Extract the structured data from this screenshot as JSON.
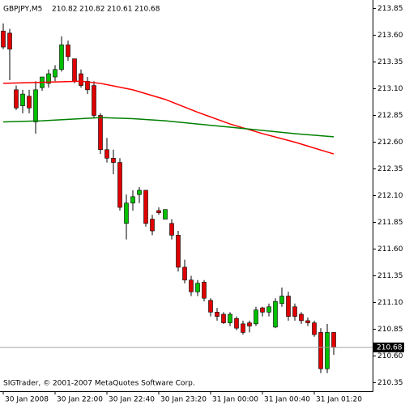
{
  "chart_data": {
    "type": "candlestick",
    "title": "GBPJPY,M5",
    "copyright": "SIGTrader, © 2001-2007 MetaQuotes Software Corp.",
    "bull_color": "#00c000",
    "bear_color": "#e00000",
    "x": [
      0,
      1,
      2,
      3,
      4,
      5,
      6,
      7,
      8,
      9,
      10,
      11,
      12,
      13,
      14,
      15,
      16,
      17,
      18,
      19,
      20,
      21,
      22,
      23,
      24,
      25,
      26,
      27,
      28,
      29,
      30,
      31,
      32,
      33,
      34,
      35,
      36,
      37,
      38,
      39,
      40,
      41,
      42,
      43,
      44,
      45,
      46,
      47,
      48,
      49,
      50,
      51
    ],
    "series": [
      {
        "open": [
          213.64,
          213.62,
          213.09,
          212.94,
          213.03,
          212.79,
          213.11,
          213.15,
          213.21,
          213.28,
          213.51,
          213.38,
          213.24,
          213.17,
          213.13,
          212.85,
          212.53,
          212.45,
          212.41,
          211.84,
          212.03,
          212.11,
          212.15,
          211.88,
          211.96,
          211.88,
          211.84,
          211.73,
          211.43,
          211.31,
          211.2,
          211.29,
          211.12,
          211.01,
          210.99,
          210.91,
          210.95,
          210.9,
          210.91,
          210.9,
          211.05,
          211.01,
          210.87,
          211.09,
          211.16,
          211.06,
          210.99,
          210.93,
          210.91,
          210.82,
          210.48,
          210.82
        ],
        "high": [
          213.71,
          213.66,
          213.13,
          213.09,
          213.09,
          213.17,
          213.21,
          213.28,
          213.32,
          213.59,
          213.55,
          213.38,
          213.28,
          213.21,
          213.17,
          212.87,
          212.64,
          212.53,
          212.45,
          212.11,
          212.15,
          212.18,
          212.15,
          211.92,
          211.99,
          211.96,
          211.88,
          211.77,
          211.5,
          211.35,
          211.31,
          211.31,
          211.14,
          211.05,
          211.01,
          211.01,
          210.97,
          210.93,
          210.93,
          211.06,
          211.06,
          211.09,
          211.14,
          211.24,
          211.2,
          211.09,
          211.01,
          210.96,
          210.93,
          210.86,
          210.9,
          210.82
        ],
        "low": [
          213.47,
          213.18,
          212.9,
          212.87,
          212.87,
          212.68,
          213.08,
          213.11,
          213.17,
          213.26,
          213.36,
          213.15,
          213.11,
          213.05,
          212.83,
          212.49,
          212.41,
          212.3,
          211.96,
          211.69,
          211.96,
          212.03,
          211.81,
          211.73,
          211.92,
          211.88,
          211.69,
          211.39,
          211.28,
          211.16,
          211.16,
          211.11,
          210.97,
          210.93,
          210.9,
          210.88,
          210.84,
          210.8,
          210.82,
          210.88,
          210.97,
          210.97,
          210.86,
          211.06,
          210.93,
          210.93,
          210.9,
          210.88,
          210.78,
          210.44,
          210.44,
          210.61
        ],
        "close": [
          213.49,
          213.47,
          212.92,
          213.05,
          212.92,
          213.09,
          213.21,
          213.24,
          213.28,
          213.51,
          213.4,
          213.17,
          213.13,
          213.09,
          212.85,
          212.53,
          212.45,
          212.41,
          211.99,
          212.03,
          212.09,
          212.15,
          211.84,
          211.77,
          211.94,
          211.97,
          211.73,
          211.43,
          211.31,
          211.2,
          211.28,
          211.14,
          211.01,
          210.97,
          210.91,
          210.99,
          210.86,
          210.82,
          210.88,
          211.03,
          211.01,
          211.06,
          211.11,
          211.16,
          210.97,
          210.97,
          210.93,
          210.91,
          210.8,
          210.48,
          210.82,
          210.68
        ]
      }
    ],
    "moving_averages": [
      {
        "color": "#ff0000",
        "x": [
          0,
          6,
          12,
          15,
          20,
          25,
          30,
          35,
          40,
          45,
          51
        ],
        "values": [
          213.15,
          213.16,
          213.17,
          213.15,
          213.09,
          213.0,
          212.88,
          212.77,
          212.68,
          212.6,
          212.49
        ]
      },
      {
        "color": "#008000",
        "x": [
          0,
          6,
          12,
          15,
          20,
          25,
          30,
          35,
          40,
          45,
          51
        ],
        "values": [
          212.79,
          212.8,
          212.82,
          212.83,
          212.82,
          212.8,
          212.77,
          212.74,
          212.71,
          212.68,
          212.65
        ]
      }
    ],
    "xlim": [
      -0.5,
      57
    ],
    "xticks": [
      {
        "value": 0,
        "label": "30 Jan 2008"
      },
      {
        "value": 8,
        "label": "30 Jan 22:00"
      },
      {
        "value": 16,
        "label": "30 Jan 22:40"
      },
      {
        "value": 24,
        "label": "30 Jan 23:20"
      },
      {
        "value": 32,
        "label": "31 Jan 00:00"
      },
      {
        "value": 40,
        "label": "31 Jan 00:40"
      },
      {
        "value": 48,
        "label": "31 Jan 01:20"
      }
    ],
    "ylim": [
      210.27,
      213.93
    ],
    "yticks": [
      213.85,
      {
        "value": 213.6,
        "label": "213.60"
      },
      213.35,
      {
        "value": 213.1,
        "label": "213.10"
      },
      212.85,
      {
        "value": 212.6,
        "label": "212.60"
      },
      212.35,
      {
        "value": 212.1,
        "label": "212.10"
      },
      211.85,
      {
        "value": 211.6,
        "label": "211.60"
      },
      211.35,
      {
        "value": 211.1,
        "label": "211.10"
      },
      210.85,
      {
        "value": 210.6,
        "label": "210.60"
      },
      210.35
    ]
  }
}
